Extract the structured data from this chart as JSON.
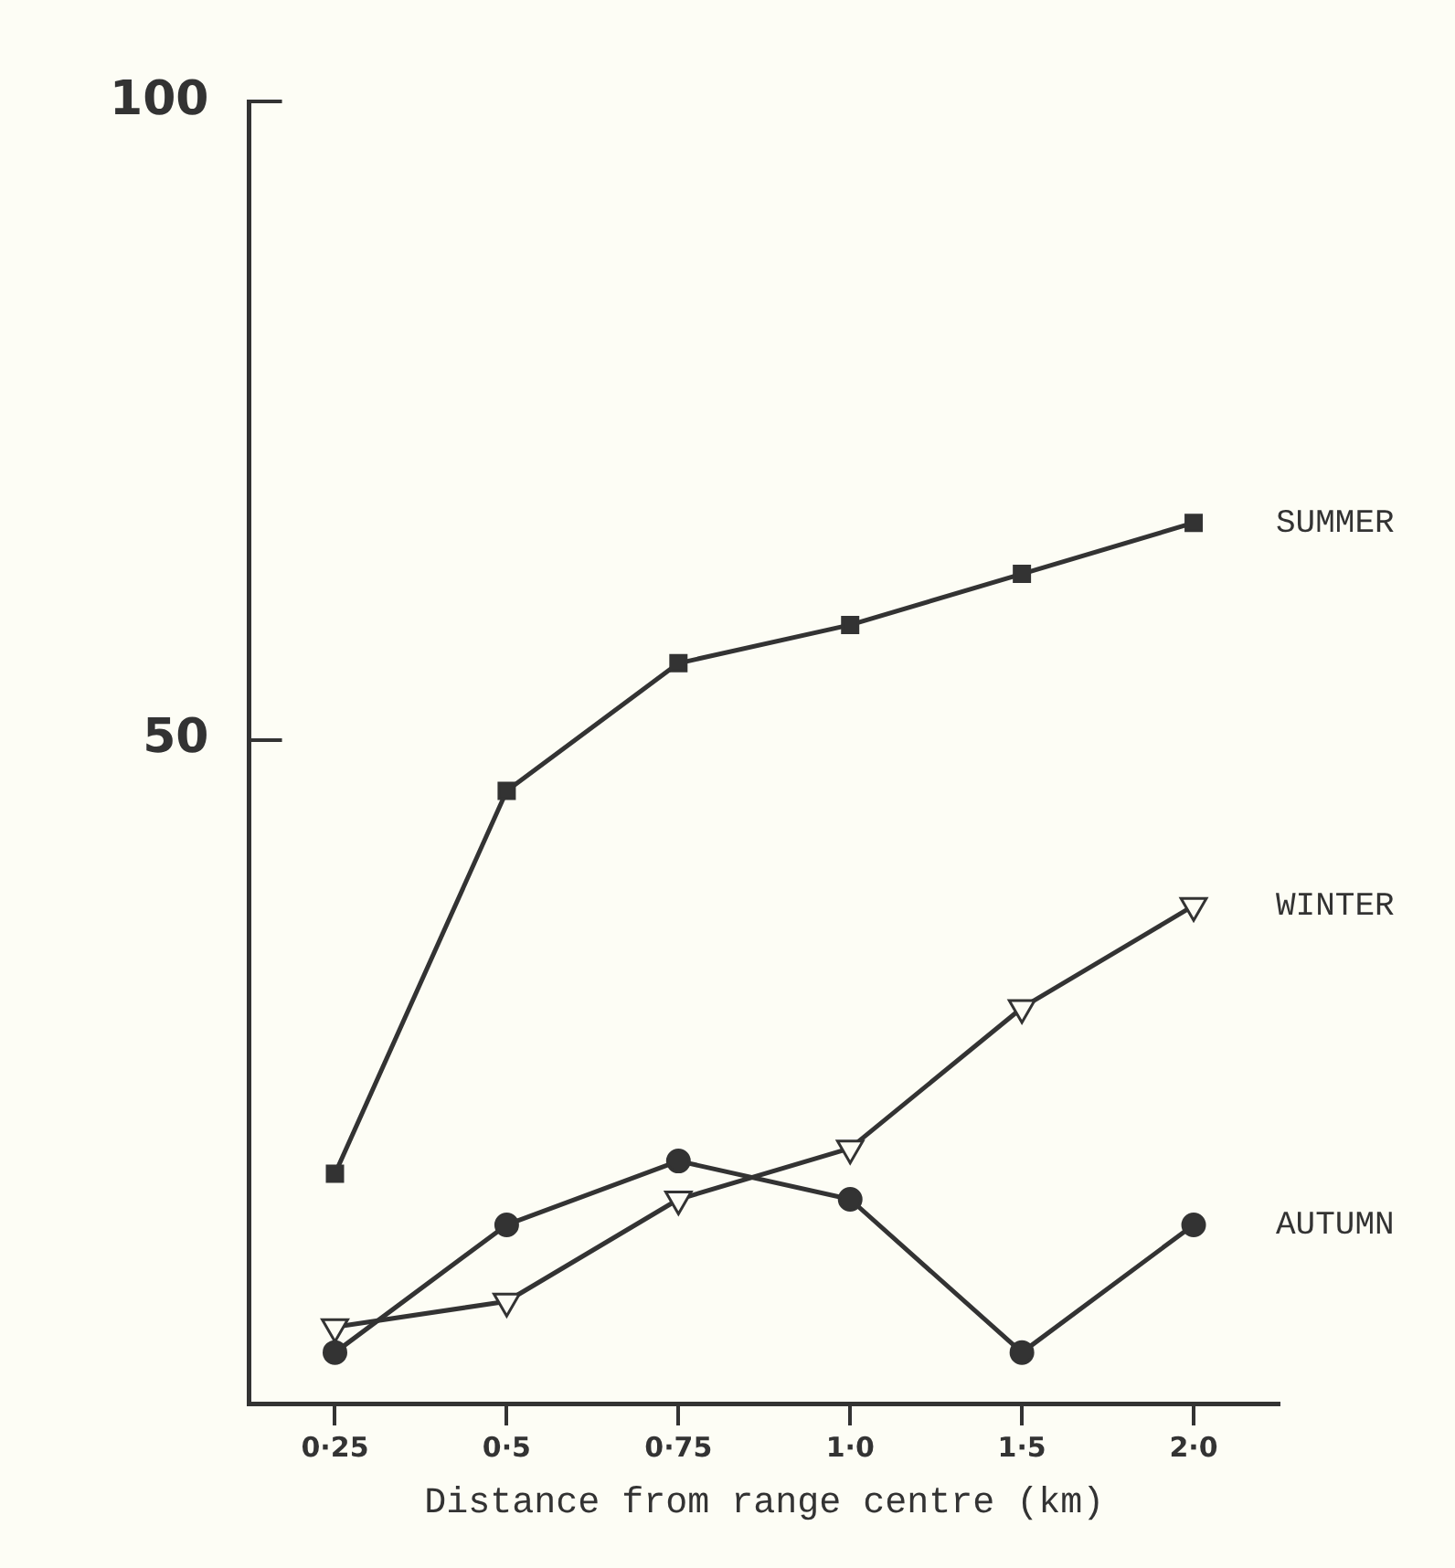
{
  "chart_data": {
    "type": "line",
    "xlabel": "Distance from range centre (km)",
    "categories": [
      "0·25",
      "0·5",
      "0·75",
      "1·0",
      "1·5",
      "2·0"
    ],
    "series": [
      {
        "name": "SUMMER",
        "color": "#333333",
        "marker": "square",
        "values": [
          16,
          46,
          56,
          59,
          63,
          67
        ]
      },
      {
        "name": "WINTER",
        "color": "#333333",
        "marker": "triangle",
        "values": [
          4,
          6,
          14,
          18,
          29,
          37
        ]
      },
      {
        "name": "AUTUMN",
        "color": "#333333",
        "marker": "circle",
        "values": [
          2,
          12,
          17,
          14,
          2,
          12
        ]
      }
    ],
    "ylim": [
      -2,
      100
    ],
    "yticks": [
      50,
      100
    ],
    "grid": false,
    "legend": false
  }
}
